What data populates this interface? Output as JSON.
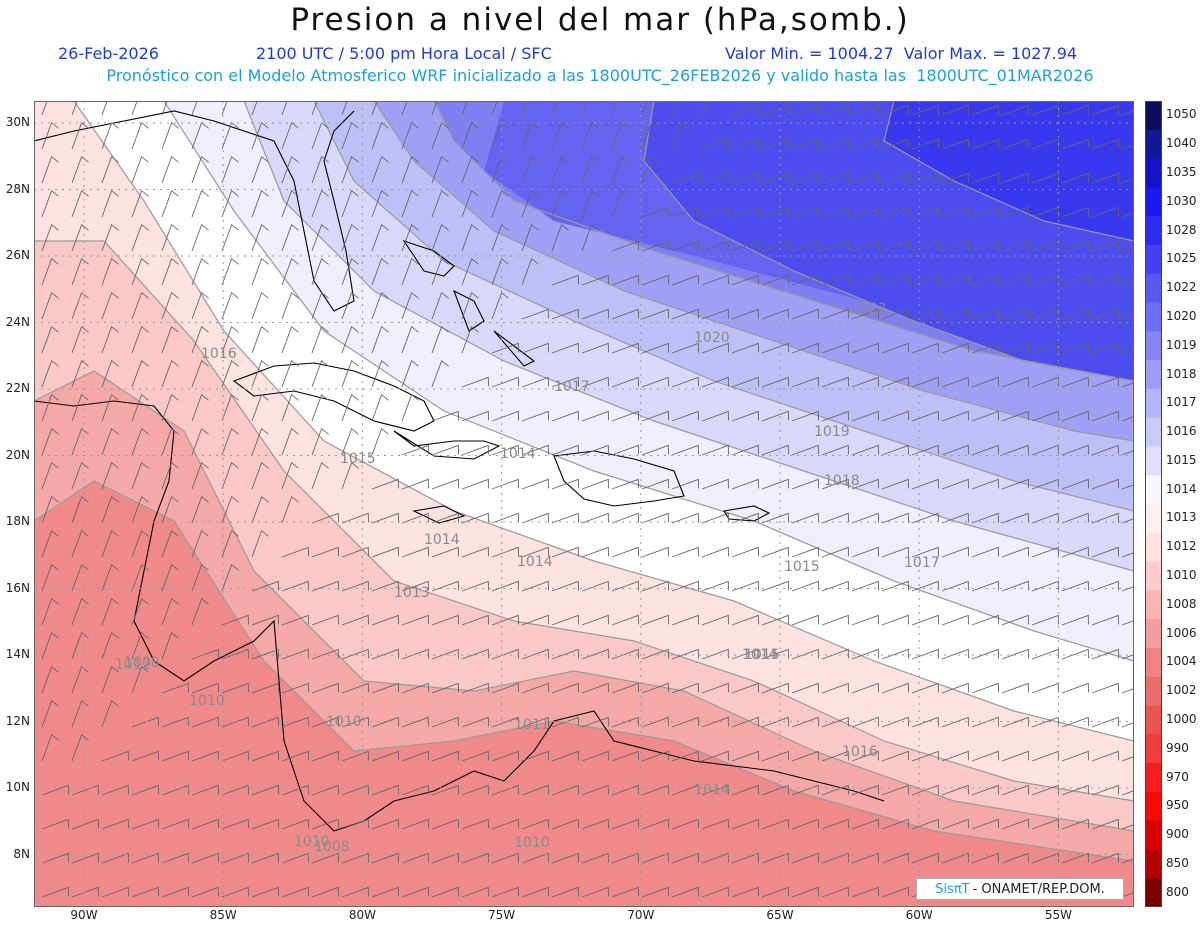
{
  "header": {
    "title": "Presion a nivel del mar (hPa,somb.)",
    "date": "26-Feb-2026",
    "time": "2100 UTC / 5:00 pm Hora Local / SFC",
    "min_max": "Valor Min. = 1004.27  Valor Max. = 1027.94",
    "subtitle": "Pronóstico con el Modelo Atmosferico WRF inicializado a las 1800UTC_26FEB2026 y valido hasta las  1800UTC_01MAR2026"
  },
  "map": {
    "lat_labels": [
      "30N",
      "28N",
      "26N",
      "24N",
      "22N",
      "20N",
      "18N",
      "16N",
      "14N",
      "12N",
      "10N",
      "8N"
    ],
    "lon_labels": [
      "90W",
      "85W",
      "80W",
      "75W",
      "70W",
      "65W",
      "60W",
      "55W"
    ],
    "contour_labels": [
      "1022",
      "1020",
      "1019",
      "1018",
      "1017",
      "1016",
      "1015",
      "1014",
      "1014",
      "1014",
      "1013",
      "1012",
      "1010",
      "1010",
      "1008",
      "1008",
      "1010",
      "1017",
      "1015",
      "1014",
      "1015",
      "1016",
      "1014",
      "1011",
      "1010"
    ]
  },
  "colorbar": {
    "levels": [
      "1050",
      "1040",
      "1035",
      "1030",
      "1028",
      "1025",
      "1022",
      "1020",
      "1019",
      "1018",
      "1017",
      "1016",
      "1015",
      "1014",
      "1013",
      "1012",
      "1010",
      "1008",
      "1006",
      "1004",
      "1002",
      "1000",
      "990",
      "970",
      "950",
      "900",
      "850",
      "800"
    ],
    "colors": [
      "#0d0d5c",
      "#101896",
      "#1313c8",
      "#1a1af0",
      "#2d2df2",
      "#4242f2",
      "#5858f2",
      "#6e6ef3",
      "#8585f5",
      "#9d9df7",
      "#b4b4f9",
      "#cacafb",
      "#e0e0fd",
      "#f6f6ff",
      "#fff0f0",
      "#ffe0e0",
      "#ffcccc",
      "#fbb4b4",
      "#f59c9c",
      "#f08484",
      "#ec6c6c",
      "#e85454",
      "#f03c3c",
      "#f41e1e",
      "#f50a0a",
      "#d80000",
      "#b40000",
      "#7a0000"
    ]
  },
  "credit": {
    "brand": "SisπT",
    "text": "- ONAMET/REP.DOM."
  }
}
